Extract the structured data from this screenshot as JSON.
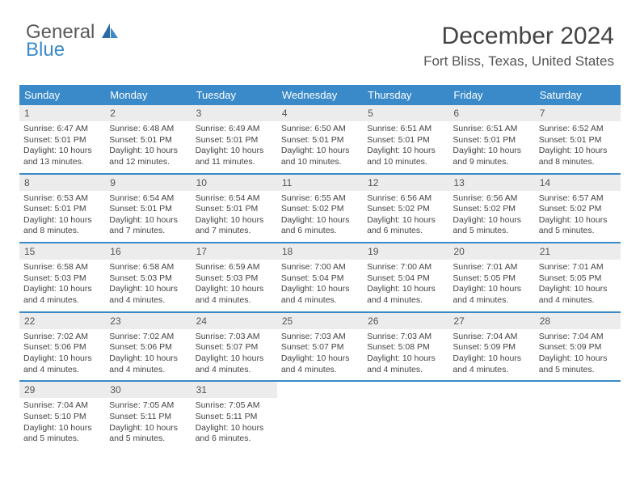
{
  "logo": {
    "line1": "General",
    "line2": "Blue"
  },
  "header": {
    "title": "December 2024",
    "subtitle": "Fort Bliss, Texas, United States"
  },
  "colors": {
    "headerBg": "#3a8ac9",
    "dayNumBg": "#ececec",
    "text": "#444444",
    "borderBlue": "#3a8ac9"
  },
  "dayNames": [
    "Sunday",
    "Monday",
    "Tuesday",
    "Wednesday",
    "Thursday",
    "Friday",
    "Saturday"
  ],
  "weeks": [
    [
      {
        "num": "1",
        "sunrise": "Sunrise: 6:47 AM",
        "sunset": "Sunset: 5:01 PM",
        "daylight": "Daylight: 10 hours and 13 minutes."
      },
      {
        "num": "2",
        "sunrise": "Sunrise: 6:48 AM",
        "sunset": "Sunset: 5:01 PM",
        "daylight": "Daylight: 10 hours and 12 minutes."
      },
      {
        "num": "3",
        "sunrise": "Sunrise: 6:49 AM",
        "sunset": "Sunset: 5:01 PM",
        "daylight": "Daylight: 10 hours and 11 minutes."
      },
      {
        "num": "4",
        "sunrise": "Sunrise: 6:50 AM",
        "sunset": "Sunset: 5:01 PM",
        "daylight": "Daylight: 10 hours and 10 minutes."
      },
      {
        "num": "5",
        "sunrise": "Sunrise: 6:51 AM",
        "sunset": "Sunset: 5:01 PM",
        "daylight": "Daylight: 10 hours and 10 minutes."
      },
      {
        "num": "6",
        "sunrise": "Sunrise: 6:51 AM",
        "sunset": "Sunset: 5:01 PM",
        "daylight": "Daylight: 10 hours and 9 minutes."
      },
      {
        "num": "7",
        "sunrise": "Sunrise: 6:52 AM",
        "sunset": "Sunset: 5:01 PM",
        "daylight": "Daylight: 10 hours and 8 minutes."
      }
    ],
    [
      {
        "num": "8",
        "sunrise": "Sunrise: 6:53 AM",
        "sunset": "Sunset: 5:01 PM",
        "daylight": "Daylight: 10 hours and 8 minutes."
      },
      {
        "num": "9",
        "sunrise": "Sunrise: 6:54 AM",
        "sunset": "Sunset: 5:01 PM",
        "daylight": "Daylight: 10 hours and 7 minutes."
      },
      {
        "num": "10",
        "sunrise": "Sunrise: 6:54 AM",
        "sunset": "Sunset: 5:01 PM",
        "daylight": "Daylight: 10 hours and 7 minutes."
      },
      {
        "num": "11",
        "sunrise": "Sunrise: 6:55 AM",
        "sunset": "Sunset: 5:02 PM",
        "daylight": "Daylight: 10 hours and 6 minutes."
      },
      {
        "num": "12",
        "sunrise": "Sunrise: 6:56 AM",
        "sunset": "Sunset: 5:02 PM",
        "daylight": "Daylight: 10 hours and 6 minutes."
      },
      {
        "num": "13",
        "sunrise": "Sunrise: 6:56 AM",
        "sunset": "Sunset: 5:02 PM",
        "daylight": "Daylight: 10 hours and 5 minutes."
      },
      {
        "num": "14",
        "sunrise": "Sunrise: 6:57 AM",
        "sunset": "Sunset: 5:02 PM",
        "daylight": "Daylight: 10 hours and 5 minutes."
      }
    ],
    [
      {
        "num": "15",
        "sunrise": "Sunrise: 6:58 AM",
        "sunset": "Sunset: 5:03 PM",
        "daylight": "Daylight: 10 hours and 4 minutes."
      },
      {
        "num": "16",
        "sunrise": "Sunrise: 6:58 AM",
        "sunset": "Sunset: 5:03 PM",
        "daylight": "Daylight: 10 hours and 4 minutes."
      },
      {
        "num": "17",
        "sunrise": "Sunrise: 6:59 AM",
        "sunset": "Sunset: 5:03 PM",
        "daylight": "Daylight: 10 hours and 4 minutes."
      },
      {
        "num": "18",
        "sunrise": "Sunrise: 7:00 AM",
        "sunset": "Sunset: 5:04 PM",
        "daylight": "Daylight: 10 hours and 4 minutes."
      },
      {
        "num": "19",
        "sunrise": "Sunrise: 7:00 AM",
        "sunset": "Sunset: 5:04 PM",
        "daylight": "Daylight: 10 hours and 4 minutes."
      },
      {
        "num": "20",
        "sunrise": "Sunrise: 7:01 AM",
        "sunset": "Sunset: 5:05 PM",
        "daylight": "Daylight: 10 hours and 4 minutes."
      },
      {
        "num": "21",
        "sunrise": "Sunrise: 7:01 AM",
        "sunset": "Sunset: 5:05 PM",
        "daylight": "Daylight: 10 hours and 4 minutes."
      }
    ],
    [
      {
        "num": "22",
        "sunrise": "Sunrise: 7:02 AM",
        "sunset": "Sunset: 5:06 PM",
        "daylight": "Daylight: 10 hours and 4 minutes."
      },
      {
        "num": "23",
        "sunrise": "Sunrise: 7:02 AM",
        "sunset": "Sunset: 5:06 PM",
        "daylight": "Daylight: 10 hours and 4 minutes."
      },
      {
        "num": "24",
        "sunrise": "Sunrise: 7:03 AM",
        "sunset": "Sunset: 5:07 PM",
        "daylight": "Daylight: 10 hours and 4 minutes."
      },
      {
        "num": "25",
        "sunrise": "Sunrise: 7:03 AM",
        "sunset": "Sunset: 5:07 PM",
        "daylight": "Daylight: 10 hours and 4 minutes."
      },
      {
        "num": "26",
        "sunrise": "Sunrise: 7:03 AM",
        "sunset": "Sunset: 5:08 PM",
        "daylight": "Daylight: 10 hours and 4 minutes."
      },
      {
        "num": "27",
        "sunrise": "Sunrise: 7:04 AM",
        "sunset": "Sunset: 5:09 PM",
        "daylight": "Daylight: 10 hours and 4 minutes."
      },
      {
        "num": "28",
        "sunrise": "Sunrise: 7:04 AM",
        "sunset": "Sunset: 5:09 PM",
        "daylight": "Daylight: 10 hours and 5 minutes."
      }
    ],
    [
      {
        "num": "29",
        "sunrise": "Sunrise: 7:04 AM",
        "sunset": "Sunset: 5:10 PM",
        "daylight": "Daylight: 10 hours and 5 minutes."
      },
      {
        "num": "30",
        "sunrise": "Sunrise: 7:05 AM",
        "sunset": "Sunset: 5:11 PM",
        "daylight": "Daylight: 10 hours and 5 minutes."
      },
      {
        "num": "31",
        "sunrise": "Sunrise: 7:05 AM",
        "sunset": "Sunset: 5:11 PM",
        "daylight": "Daylight: 10 hours and 6 minutes."
      },
      null,
      null,
      null,
      null
    ]
  ]
}
